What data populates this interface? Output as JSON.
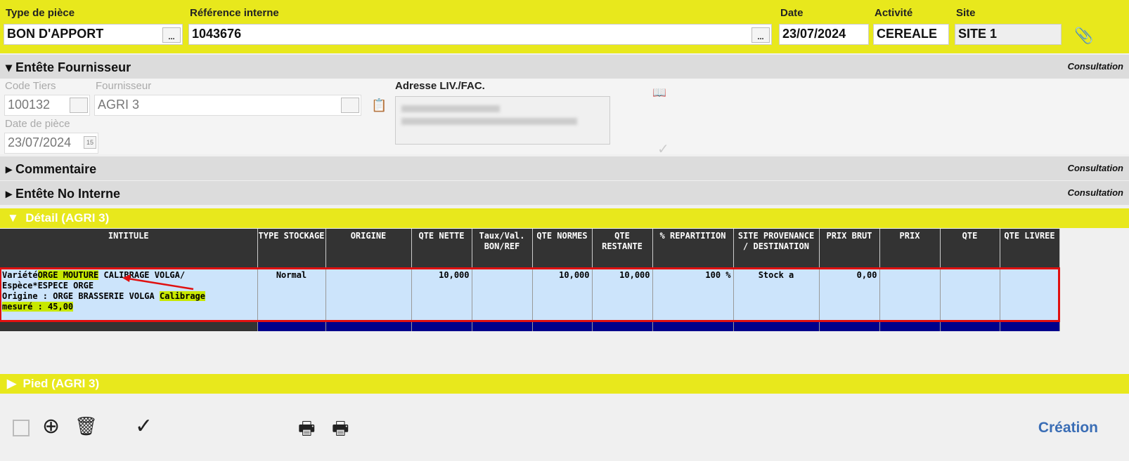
{
  "header": {
    "type_label": "Type de pièce",
    "type_value": "BON D'APPORT",
    "ref_label": "Référence interne",
    "ref_value": "1043676",
    "date_label": "Date",
    "date_value": "23/07/2024",
    "activite_label": "Activité",
    "activite_value": "CEREALE",
    "site_label": "Site",
    "site_value": "SITE 1",
    "dots": "..."
  },
  "fournisseur": {
    "title": "Entête Fournisseur",
    "mode": "Consultation",
    "code_label": "Code Tiers",
    "code_value": "100132",
    "four_label": "Fournisseur",
    "four_value": "AGRI 3",
    "date_label": "Date de pièce",
    "date_value": "23/07/2024",
    "cal": "15",
    "adresse_label": "Adresse LIV./FAC."
  },
  "commentaire": {
    "title": "Commentaire",
    "mode": "Consultation"
  },
  "no_interne": {
    "title": "Entête No Interne",
    "mode": "Consultation"
  },
  "detail": {
    "title": "Détail (AGRI 3)",
    "columns": [
      "INTITULE",
      "TYPE STOCKAGE",
      "ORIGINE",
      "QTE NETTE",
      "Taux/Val. BON/REF",
      "QTE NORMES",
      "QTE RESTANTE",
      "% REPARTITION",
      "SITE PROVENANCE / DESTINATION",
      "PRIX BRUT",
      "PRIX",
      "QTE",
      "QTE LIVREE"
    ],
    "row": {
      "intitule": {
        "p1": "Variété",
        "p2": "ORGE MOUTURE",
        "p3": " CALIBRAGE VOLGA/",
        "p4": "Espèce*ESPECE ORGE",
        "p5": "Origine :  ORGE BRASSERIE VOLGA ",
        "p6": "Calibrage",
        "p7": "mesuré :  45,00"
      },
      "cells": [
        "Normal",
        "",
        "10,000",
        "",
        "10,000",
        "10,000",
        "100 %",
        "Stock a",
        "0,00",
        "",
        "",
        ""
      ]
    }
  },
  "pied": {
    "title": "Pied (AGRI 3)"
  },
  "footer": {
    "status": "Création"
  },
  "colors": {
    "yellow": "#e8e81c",
    "highlight": "#c8e800",
    "row": "#cce4fb",
    "selection": "#e01010",
    "status": "#3a6db5"
  }
}
